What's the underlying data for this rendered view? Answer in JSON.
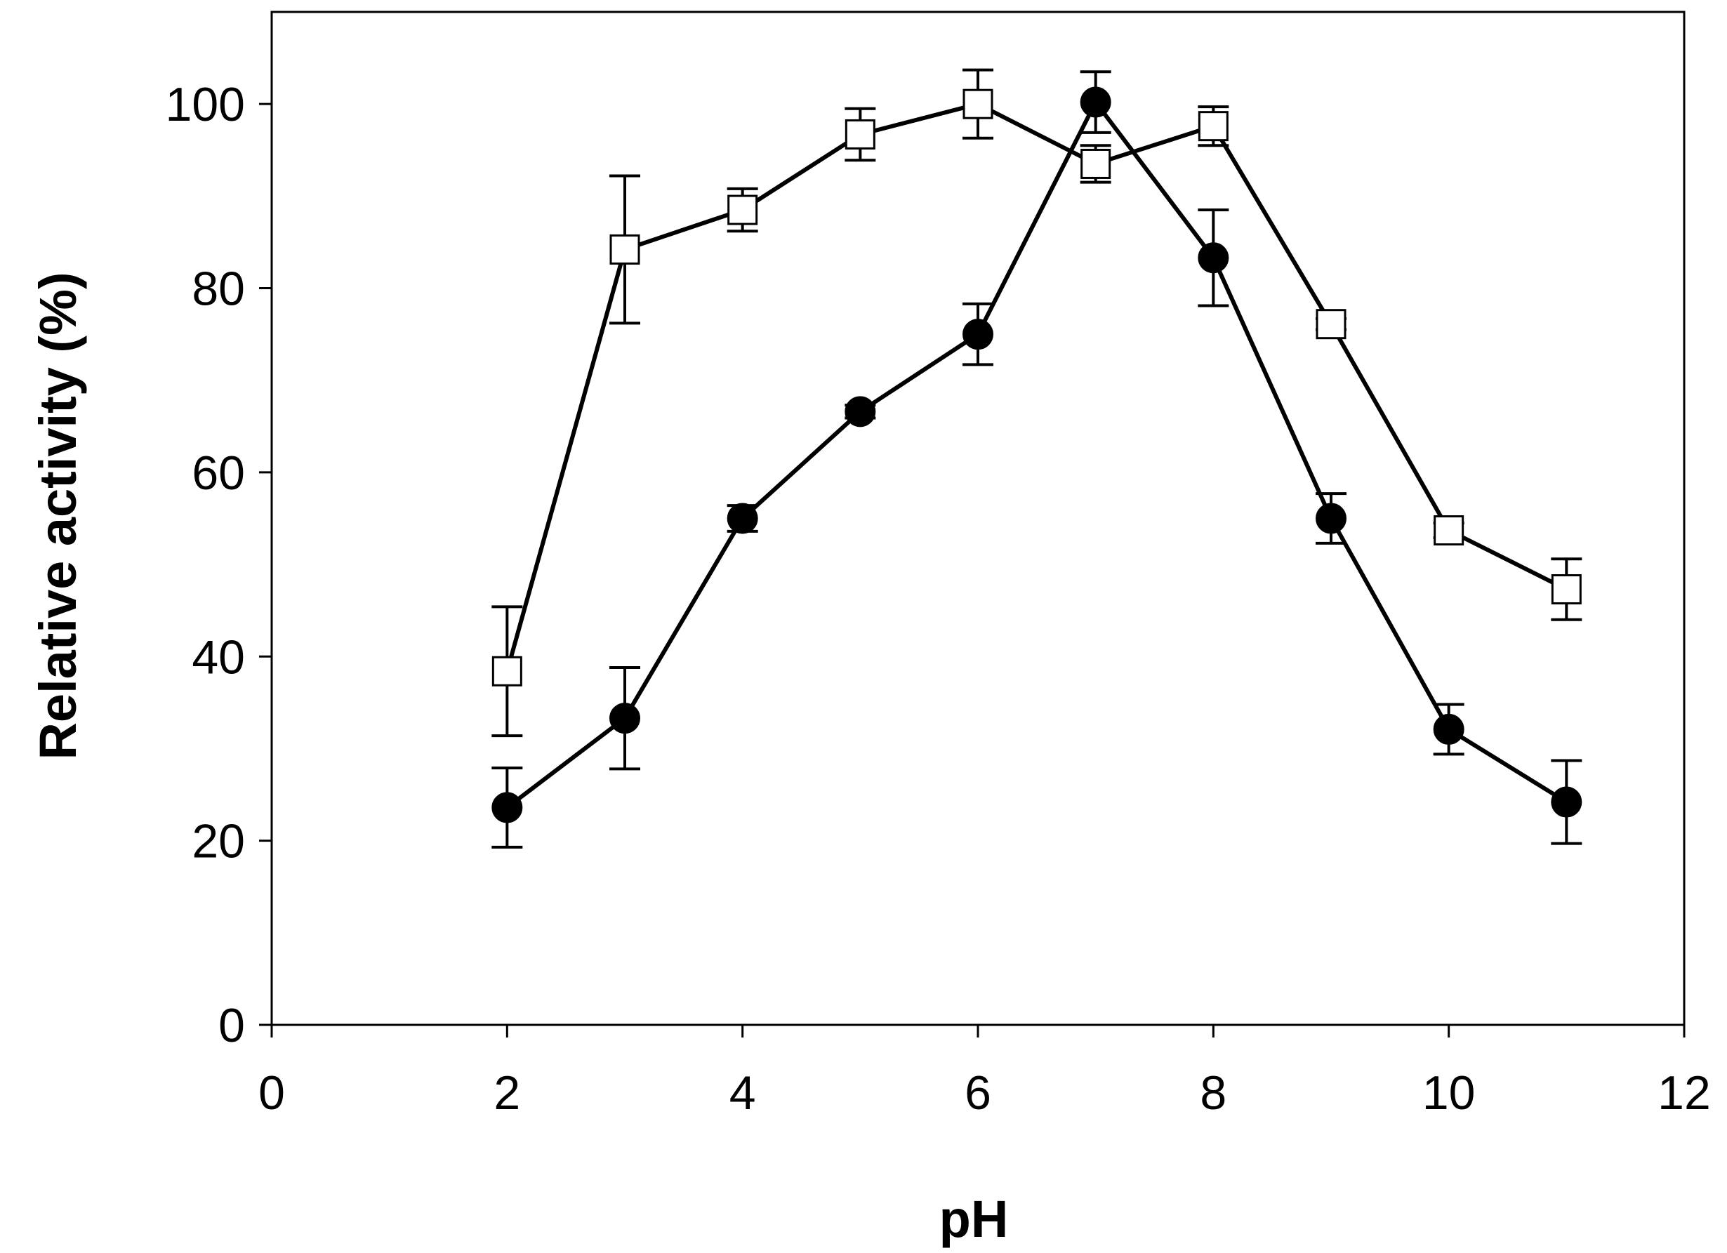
{
  "chart_data": {
    "type": "scatter",
    "title": "",
    "xlabel": "pH",
    "ylabel": "Relative activity (%)",
    "xlim": [
      0,
      12
    ],
    "ylim": [
      0,
      110
    ],
    "xticks": [
      0,
      2,
      4,
      6,
      8,
      10,
      12
    ],
    "yticks": [
      0,
      20,
      40,
      60,
      80,
      100
    ],
    "grid": false,
    "legend": "none",
    "series": [
      {
        "marker": "open-square",
        "color": "#000000",
        "x": [
          2,
          3,
          4,
          5,
          6,
          7,
          8,
          9,
          10,
          11
        ],
        "y": [
          38.4,
          84.2,
          88.5,
          96.7,
          100.0,
          93.5,
          97.6,
          76.1,
          53.7,
          47.3
        ],
        "err": [
          7.0,
          8.0,
          2.3,
          2.8,
          3.7,
          2.0,
          2.1,
          0.6,
          0.8,
          3.3
        ]
      },
      {
        "marker": "filled-circle",
        "color": "#000000",
        "x": [
          2,
          3,
          4,
          5,
          6,
          7,
          8,
          9,
          10,
          11
        ],
        "y": [
          23.6,
          33.3,
          55.0,
          66.6,
          75.0,
          100.2,
          83.3,
          55.0,
          32.1,
          24.2
        ],
        "err": [
          4.3,
          5.5,
          1.4,
          0.7,
          3.3,
          3.3,
          5.2,
          2.7,
          2.7,
          4.5
        ]
      }
    ]
  }
}
